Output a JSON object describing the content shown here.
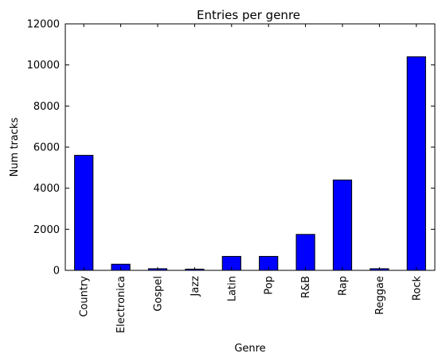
{
  "chart_data": {
    "type": "bar",
    "title": "Entries per genre",
    "xlabel": "Genre",
    "ylabel": "Num tracks",
    "categories": [
      "Country",
      "Electronica",
      "Gospel",
      "Jazz",
      "Latin",
      "Pop",
      "R&B",
      "Rap",
      "Reggae",
      "Rock"
    ],
    "values": [
      5600,
      300,
      80,
      60,
      680,
      680,
      1750,
      4400,
      80,
      10400
    ],
    "ylim": [
      0,
      12000
    ],
    "yticks": [
      "0",
      "2000",
      "4000",
      "6000",
      "8000",
      "10000",
      "12000"
    ],
    "bar_color": "#0000ff",
    "grid": false,
    "legend": "none"
  }
}
